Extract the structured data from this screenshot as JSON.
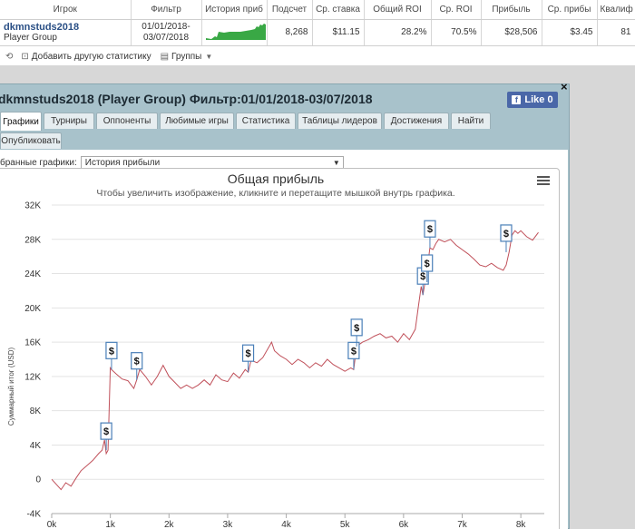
{
  "stats_table": {
    "headers": [
      "Игрок",
      "Фильтр",
      "История приб",
      "Подсчет",
      "Ср. ставка",
      "Общий ROI",
      "Ср. ROI",
      "Прибыль",
      "Ср. прибы",
      "Квалиф"
    ],
    "row": {
      "player": "dkmnstuds2018",
      "group": "Player Group",
      "filter_from": "01/01/2018-",
      "filter_to": "03/07/2018",
      "count": "8,268",
      "avg_stake": "$11.15",
      "total_roi": "28.2%",
      "avg_roi": "70.5%",
      "profit": "$28,506",
      "avg_profit": "$3.45",
      "qualif": "81"
    },
    "add_stats_label": "Добавить другую статистику",
    "groups_label": "Группы"
  },
  "popup": {
    "title": "dkmnstuds2018 (Player Group) Фильтр:01/01/2018-03/07/2018",
    "like_label": "Like 0",
    "close_label": "×",
    "tabs": [
      "Графики",
      "Турниры",
      "Оппоненты",
      "Любимые игры",
      "Статистика",
      "Таблицы лидеров",
      "Достижения",
      "Найти",
      "Опубликовать"
    ],
    "active_tab": "Графики",
    "graphs_label": "бранные графики:",
    "graphs_selected": "История прибыли"
  },
  "colors": {
    "line": "#c0505a",
    "flag_border": "#4a7fb8",
    "sparkline": "#39a845",
    "popup_bg": "#a8c2cb"
  },
  "chart_data": {
    "type": "line",
    "title": "Общая прибыль",
    "subtitle": "Чтобы увеличить изображение, кликните и перетащите мышкой внутрь графика.",
    "ylabel": "Суммарный итог (USD)",
    "xlabel": "",
    "x_ticks": [
      "0k",
      "1k",
      "2k",
      "3k",
      "4k",
      "5k",
      "6k",
      "7k",
      "8k"
    ],
    "y_ticks": [
      "-4K",
      "0",
      "4K",
      "8K",
      "12K",
      "16K",
      "20K",
      "24K",
      "28K",
      "32K"
    ],
    "xlim": [
      0,
      8400
    ],
    "ylim": [
      -4000,
      32000
    ],
    "grid": true,
    "series": [
      {
        "name": "",
        "x": [
          0,
          80,
          160,
          240,
          330,
          420,
          500,
          600,
          700,
          800,
          860,
          900,
          930,
          960,
          1000,
          1020,
          1100,
          1200,
          1300,
          1400,
          1450,
          1500,
          1600,
          1700,
          1800,
          1900,
          2000,
          2100,
          2200,
          2300,
          2400,
          2500,
          2600,
          2700,
          2800,
          2900,
          3000,
          3100,
          3200,
          3300,
          3350,
          3400,
          3500,
          3600,
          3700,
          3750,
          3800,
          3900,
          4000,
          4100,
          4200,
          4300,
          4400,
          4500,
          4600,
          4700,
          4800,
          4900,
          5000,
          5100,
          5150,
          5200,
          5300,
          5400,
          5500,
          5600,
          5700,
          5800,
          5900,
          6000,
          6100,
          6200,
          6250,
          6300,
          6330,
          6360,
          6400,
          6430,
          6450,
          6500,
          6550,
          6600,
          6700,
          6800,
          6900,
          7000,
          7100,
          7200,
          7300,
          7400,
          7500,
          7600,
          7700,
          7750,
          7800,
          7850,
          7900,
          7950,
          8000,
          8100,
          8200,
          8300
        ],
        "y": [
          0,
          -600,
          -1200,
          -400,
          -800,
          200,
          1000,
          1600,
          2200,
          3000,
          3400,
          4600,
          3000,
          3400,
          13000,
          12800,
          12300,
          11700,
          11500,
          10600,
          11600,
          12800,
          12000,
          11000,
          12000,
          13300,
          12000,
          11300,
          10600,
          11000,
          10600,
          11000,
          11600,
          11000,
          12200,
          11600,
          11400,
          12400,
          11800,
          12800,
          12500,
          13900,
          13600,
          14200,
          15400,
          16000,
          15000,
          14400,
          14000,
          13400,
          14000,
          13600,
          13000,
          13600,
          13200,
          14000,
          13400,
          13000,
          12600,
          13000,
          12800,
          15500,
          16000,
          16300,
          16700,
          17000,
          16500,
          16700,
          16000,
          17000,
          16300,
          17500,
          20000,
          22500,
          21500,
          22700,
          23000,
          26000,
          27000,
          26800,
          27500,
          28000,
          27700,
          28000,
          27300,
          26800,
          26300,
          25700,
          25000,
          24800,
          25200,
          24700,
          24400,
          25000,
          26500,
          28500,
          29000,
          28700,
          29000,
          28300,
          27900,
          28800
        ]
      }
    ],
    "flags": [
      {
        "x": 930,
        "y": 3400,
        "label": "$"
      },
      {
        "x": 1020,
        "y": 12800,
        "label": "$"
      },
      {
        "x": 1450,
        "y": 11600,
        "label": "$"
      },
      {
        "x": 3350,
        "y": 12500,
        "label": "$"
      },
      {
        "x": 5150,
        "y": 12800,
        "label": "$"
      },
      {
        "x": 5200,
        "y": 15500,
        "label": "$"
      },
      {
        "x": 6330,
        "y": 21500,
        "label": "$"
      },
      {
        "x": 6400,
        "y": 23000,
        "label": "$"
      },
      {
        "x": 6450,
        "y": 27000,
        "label": "$"
      },
      {
        "x": 7750,
        "y": 26500,
        "label": "$"
      }
    ]
  }
}
